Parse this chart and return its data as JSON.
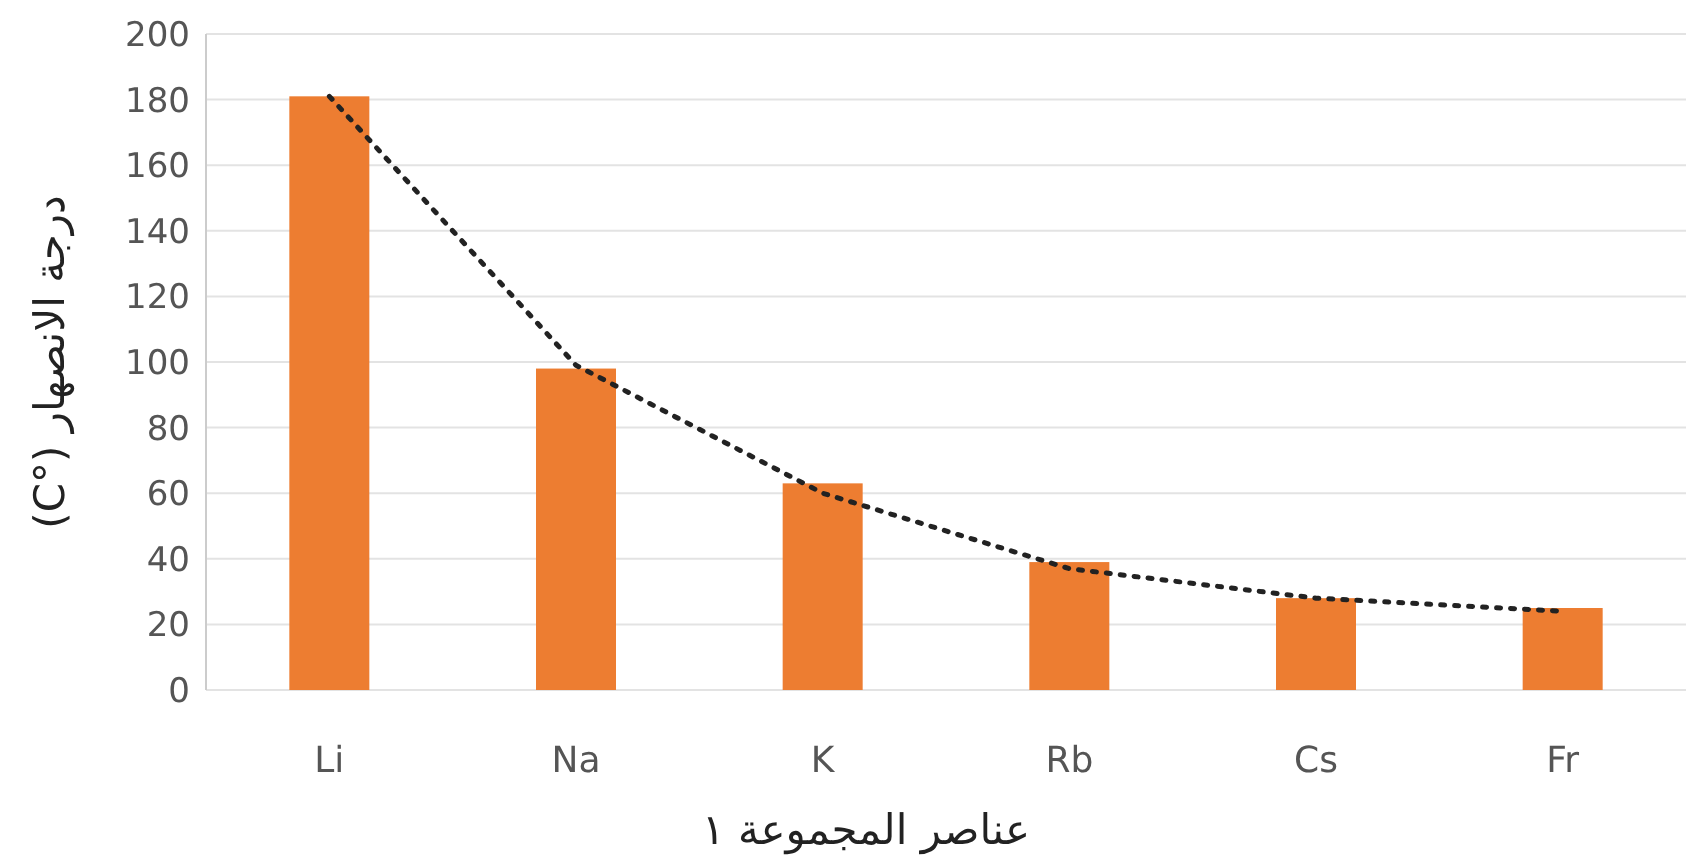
{
  "chart_data": {
    "type": "bar",
    "xlabel": "عناصر المجموعة ١",
    "ylabel": "درجة الانصهار (°C)",
    "categories": [
      "Li",
      "Na",
      "K",
      "Rb",
      "Cs",
      "Fr"
    ],
    "series": [
      {
        "color": "#ed7d31",
        "values": [
          181,
          98,
          63,
          39,
          28,
          25
        ]
      },
      {
        "type": "line",
        "color": "#222222",
        "line_style": "dotted",
        "marker": "none",
        "x": [
          "Li",
          "Na",
          "K",
          "Rb",
          "Cs",
          "Fr"
        ],
        "values": [
          181,
          99,
          60,
          37,
          28,
          24
        ]
      }
    ],
    "ylim": [
      0,
      200
    ],
    "yticks": [
      0,
      20,
      40,
      60,
      80,
      100,
      120,
      140,
      160,
      180,
      200
    ],
    "grid": "y"
  }
}
